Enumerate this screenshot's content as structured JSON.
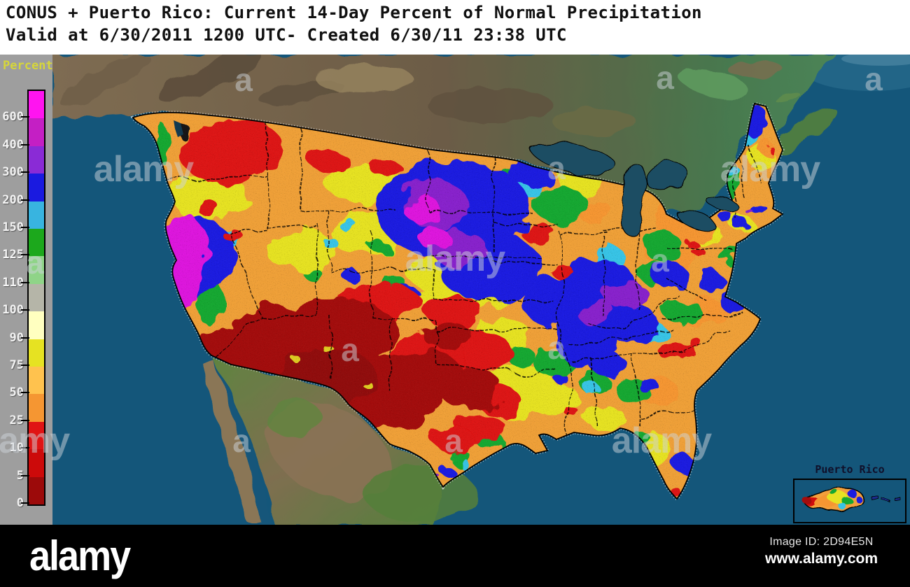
{
  "header": {
    "title_line1": "CONUS + Puerto Rico: Current 14-Day Percent of Normal Precipitation",
    "title_line2": "Valid at 6/30/2011 1200 UTC- Created 6/30/11 23:38 UTC"
  },
  "legend": {
    "title": "Percent",
    "labels": [
      "600",
      "400",
      "300",
      "200",
      "150",
      "125",
      "110",
      "100",
      "90",
      "75",
      "50",
      "25",
      "10",
      "5",
      "0"
    ],
    "segment_colors": [
      "#FF14F0",
      "#C41FC4",
      "#8A2BD6",
      "#1A1AE0",
      "#38B4E0",
      "#1CA81C",
      "#8FD488",
      "#B5B5A8",
      "#FFFFC0",
      "#E6E222",
      "#FFC24E",
      "#F59632",
      "#E01414",
      "#CC0A0A",
      "#9C0A0A"
    ],
    "panel_color": "#9E9E9E",
    "title_color": "#D6D63A"
  },
  "map": {
    "ocean_color": "#14567A",
    "lake_color": "#1C4E64",
    "inset": {
      "label": "Puerto Rico"
    }
  },
  "watermark": {
    "brand": "alamy",
    "letter": "a"
  },
  "footer": {
    "brand": "alamy",
    "image_id_label": "Image ID: 2D94E5N",
    "website": "www.alamy.com"
  }
}
